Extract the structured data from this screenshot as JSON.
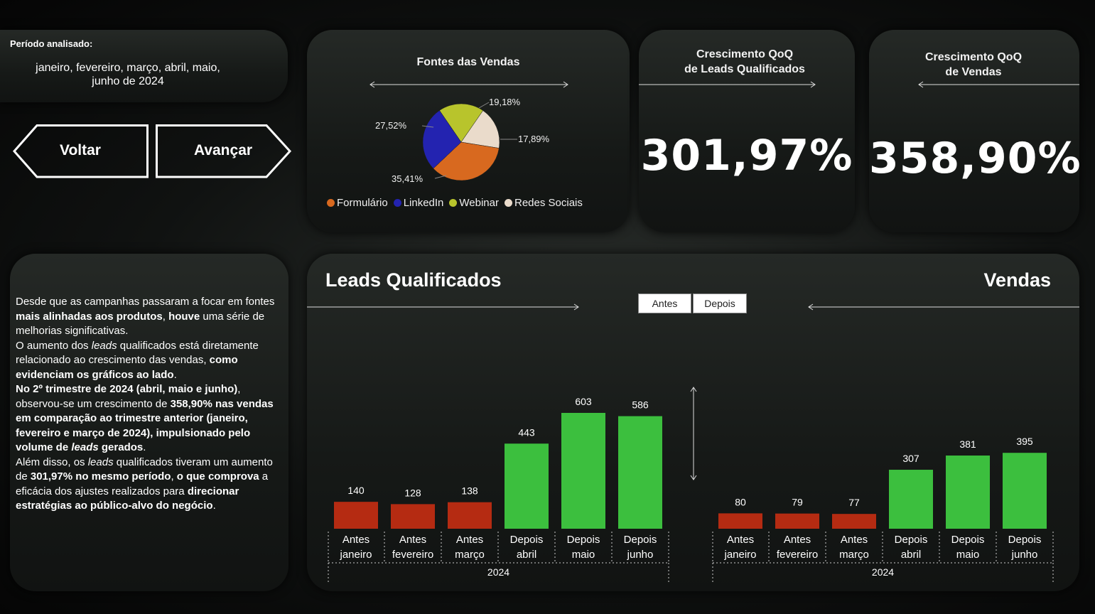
{
  "period": {
    "label": "Período analisado:",
    "value_line1": "janeiro, fevereiro, março, abril, maio,",
    "value_line2": "junho de 2024"
  },
  "nav": {
    "back_label": "Voltar",
    "next_label": "Avançar"
  },
  "sources": {
    "title": "Fontes das Vendas",
    "labels": {
      "formulario": "35,41%",
      "linkedin": "27,52%",
      "webinar": "19,18%",
      "redes": "17,89%"
    },
    "legend": [
      "Formulário",
      "LinkedIn",
      "Webinar",
      "Redes Sociais"
    ]
  },
  "kpi_leads": {
    "title_line1": "Crescimento QoQ",
    "title_line2": "de Leads Qualificados",
    "value": "301,97%"
  },
  "kpi_sales": {
    "title_line1": "Crescimento QoQ",
    "title_line2": "de Vendas",
    "value": "358,90%"
  },
  "tabs": {
    "before": "Antes",
    "after": "Depois"
  },
  "colors": {
    "antes": "#b52b12",
    "depois": "#3cbf3e",
    "formulario": "#d8691f",
    "linkedin": "#2323b0",
    "webinar": "#b8c42c",
    "redes": "#eadbcb"
  },
  "chart_data": [
    {
      "type": "bar",
      "title": "Leads Qualificados",
      "categories": [
        [
          "Antes",
          "janeiro"
        ],
        [
          "Antes",
          "fevereiro"
        ],
        [
          "Antes",
          "março"
        ],
        [
          "Depois",
          "abril"
        ],
        [
          "Depois",
          "maio"
        ],
        [
          "Depois",
          "junho"
        ]
      ],
      "year": "2024",
      "values": [
        140,
        128,
        138,
        443,
        603,
        586
      ],
      "ylim": [
        0,
        620
      ]
    },
    {
      "type": "bar",
      "title": "Vendas",
      "categories": [
        [
          "Antes",
          "janeiro"
        ],
        [
          "Antes",
          "fevereiro"
        ],
        [
          "Antes",
          "março"
        ],
        [
          "Depois",
          "abril"
        ],
        [
          "Depois",
          "maio"
        ],
        [
          "Depois",
          "junho"
        ]
      ],
      "year": "2024",
      "values": [
        80,
        79,
        77,
        307,
        381,
        395
      ],
      "ylim": [
        0,
        400
      ]
    },
    {
      "type": "pie",
      "title": "Fontes das Vendas",
      "labels": [
        "Formulário",
        "LinkedIn",
        "Webinar",
        "Redes Sociais"
      ],
      "values": [
        35.41,
        27.52,
        19.18,
        17.89
      ]
    }
  ],
  "summary": {
    "p1_a": "Desde que as campanhas passaram a focar em fontes ",
    "p1_b": "mais alinhadas aos produtos",
    "p1_c": ", ",
    "p1_d": "houve",
    "p1_e": " uma série de melhorias significativas.",
    "p2_a": "O aumento dos ",
    "p2_b": "leads",
    "p2_c": " qualificados está diretamente relacionado ao crescimento das vendas, ",
    "p2_d": "como evidenciam os gráficos ao lado",
    "p2_e": ".",
    "p3_a": "No 2º trimestre de 2024 (abril, maio e junho)",
    "p3_b": ", observou-se um crescimento de ",
    "p3_c": "358,90% nas vendas em comparação ao trimestre anterior (janeiro, fevereiro e março de 2024), impulsionado pelo volume de ",
    "p3_d": "leads",
    "p3_e": " gerados",
    "p3_f": ".",
    "p4_a": "Além disso, os ",
    "p4_b": "leads",
    "p4_c": " qualificados tiveram um aumento de ",
    "p4_d": "301,97% no mesmo período",
    "p4_e": ", ",
    "p4_f": "o que comprova",
    "p4_g": " a eficácia dos ajustes realizados para ",
    "p4_h": "direcionar estratégias ao público-alvo do negócio",
    "p4_i": "."
  }
}
